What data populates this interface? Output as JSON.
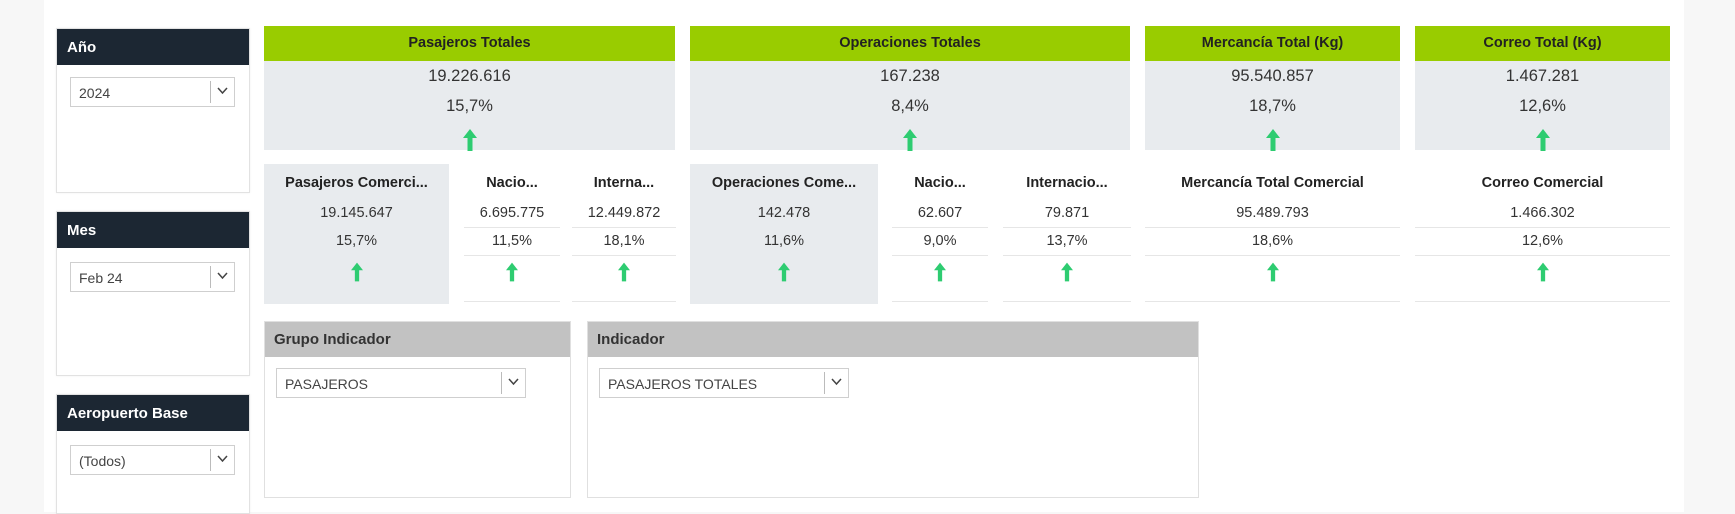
{
  "filters": {
    "year": {
      "title": "Año",
      "value": "2024"
    },
    "month": {
      "title": "Mes",
      "value": "Feb 24"
    },
    "airport": {
      "title": "Aeropuerto Base",
      "value": "(Todos)"
    }
  },
  "kpis": {
    "pasajeros": {
      "title": "Pasajeros Totales",
      "value": "19.226.616",
      "pct": "15,7%",
      "trend": "up"
    },
    "operaciones": {
      "title": "Operaciones Totales",
      "value": "167.238",
      "pct": "8,4%",
      "trend": "up"
    },
    "mercancia": {
      "title": "Mercancía Total (Kg)",
      "value": "95.540.857",
      "pct": "18,7%",
      "trend": "up"
    },
    "correo": {
      "title": "Correo Total (Kg)",
      "value": "1.467.281",
      "pct": "12,6%",
      "trend": "up"
    }
  },
  "sub": {
    "pas_com": {
      "title": "Pasajeros Comerci...",
      "value": "19.145.647",
      "pct": "15,7%"
    },
    "pas_nac": {
      "title": "Nacio...",
      "value": "6.695.775",
      "pct": "11,5%"
    },
    "pas_int": {
      "title": "Interna...",
      "value": "12.449.872",
      "pct": "18,1%"
    },
    "op_com": {
      "title": "Operaciones Come...",
      "value": "142.478",
      "pct": "11,6%"
    },
    "op_nac": {
      "title": "Nacio...",
      "value": "62.607",
      "pct": "9,0%"
    },
    "op_int": {
      "title": "Internacio...",
      "value": "79.871",
      "pct": "13,7%"
    },
    "merc_com": {
      "title": "Mercancía Total Comercial",
      "value": "95.489.793",
      "pct": "18,6%"
    },
    "correo_com": {
      "title": "Correo Comercial",
      "value": "1.466.302",
      "pct": "12,6%"
    }
  },
  "indicators": {
    "grupo": {
      "title": "Grupo Indicador",
      "value": "PASAJEROS"
    },
    "indicador": {
      "title": "Indicador",
      "value": "PASAJEROS TOTALES"
    }
  },
  "colors": {
    "accent_green": "#99cc00",
    "arrow_green": "#2ecc71",
    "filter_header": "#1c2733",
    "panel_header": "#c2c2c2"
  }
}
